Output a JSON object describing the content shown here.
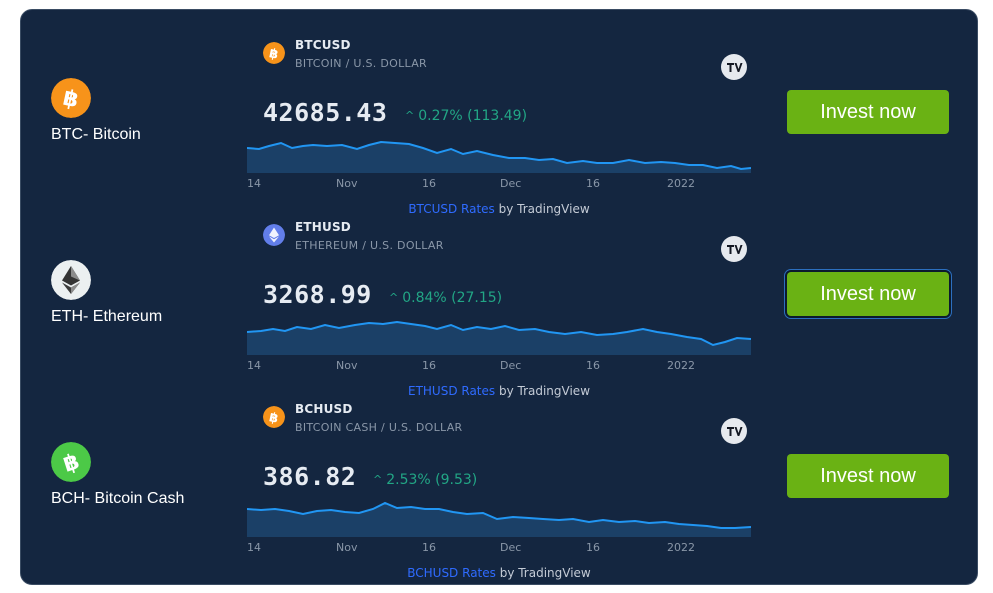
{
  "rows": [
    {
      "coin_label": "BTC- Bitcoin",
      "icon": "bitcoin-icon",
      "icon_color": "#f7931a",
      "symbol": "BTCUSD",
      "description": "BITCOIN / U.S. DOLLAR",
      "price": "42685.43",
      "change": "0.27% (113.49)",
      "attribution_link": "BTCUSD Rates",
      "attribution_suffix": " by TradingView",
      "button_label": "Invest now",
      "button_focused": false
    },
    {
      "coin_label": "ETH- Ethereum",
      "icon": "ethereum-icon",
      "icon_color": "#627eea",
      "symbol": "ETHUSD",
      "description": "ETHEREUM / U.S. DOLLAR",
      "price": "3268.99",
      "change": "0.84% (27.15)",
      "attribution_link": "ETHUSD Rates",
      "attribution_suffix": " by TradingView",
      "button_label": "Invest now",
      "button_focused": true
    },
    {
      "coin_label": "BCH- Bitcoin Cash",
      "icon": "bitcoin-cash-icon",
      "icon_color": "#4cc947",
      "symbol": "BCHUSD",
      "description": "BITCOIN CASH / U.S. DOLLAR",
      "price": "386.82",
      "change": "2.53% (9.53)",
      "attribution_link": "BCHUSD Rates",
      "attribution_suffix": " by TradingView",
      "button_label": "Invest now",
      "button_focused": false
    }
  ],
  "x_ticks": [
    "14",
    "Nov",
    "16",
    "Dec",
    "16",
    "2022"
  ],
  "colors": {
    "panel_bg": "#142640",
    "line": "#2196f3",
    "area": "#1d4a74",
    "positive": "#22a685",
    "button": "#6ab214"
  }
}
